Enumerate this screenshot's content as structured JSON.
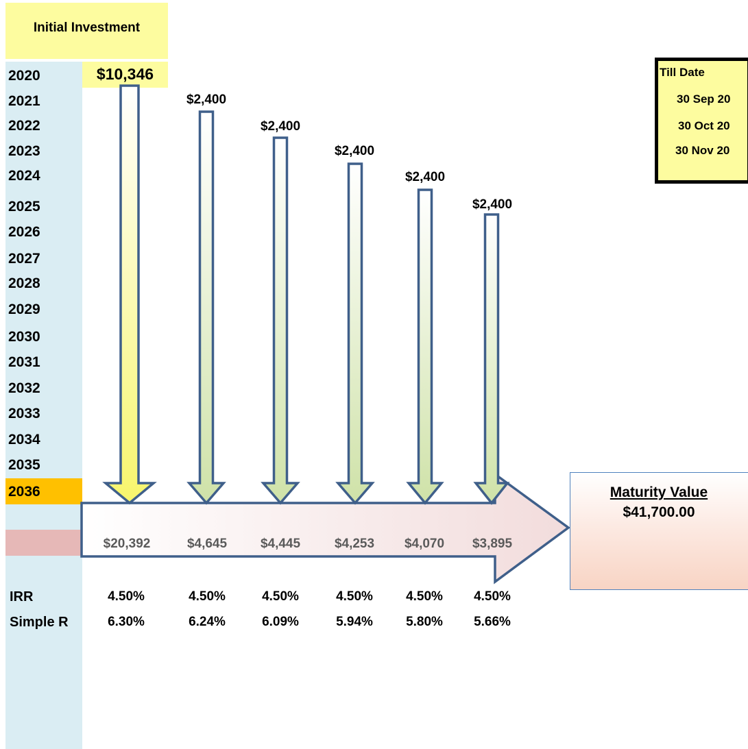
{
  "header": {
    "initial_investment_label": "Initial Investment",
    "initial_investment_value": "$10,346"
  },
  "years": [
    "2020",
    "2021",
    "2022",
    "2023",
    "2024",
    "2025",
    "2026",
    "2027",
    "2028",
    "2029",
    "2030",
    "2031",
    "2032",
    "2033",
    "2034",
    "2035",
    "2036"
  ],
  "contributions": [
    "$2,400",
    "$2,400",
    "$2,400",
    "$2,400",
    "$2,400"
  ],
  "future_values": [
    "$20,392",
    "$4,645",
    "$4,445",
    "$4,253",
    "$4,070",
    "$3,895"
  ],
  "metrics": {
    "irr_label": "IRR",
    "simple_label": "Simple R",
    "irr": [
      "4.50%",
      "4.50%",
      "4.50%",
      "4.50%",
      "4.50%",
      "4.50%"
    ],
    "simple": [
      "6.30%",
      "6.24%",
      "6.09%",
      "5.94%",
      "5.80%",
      "5.66%"
    ]
  },
  "till_date": {
    "title": "Till Date",
    "dates": [
      "30 Sep 20",
      "30 Oct 20",
      "30 Nov 20"
    ]
  },
  "maturity": {
    "label": "Maturity Value",
    "value": "$41,700.00"
  },
  "colors": {
    "arrow_stroke": "#3f5f8a",
    "side_column": "#daedf3",
    "highlight_yellow": "#fdfc9f",
    "final_year": "#ffc000",
    "pink_row": "#e6b8b7"
  }
}
